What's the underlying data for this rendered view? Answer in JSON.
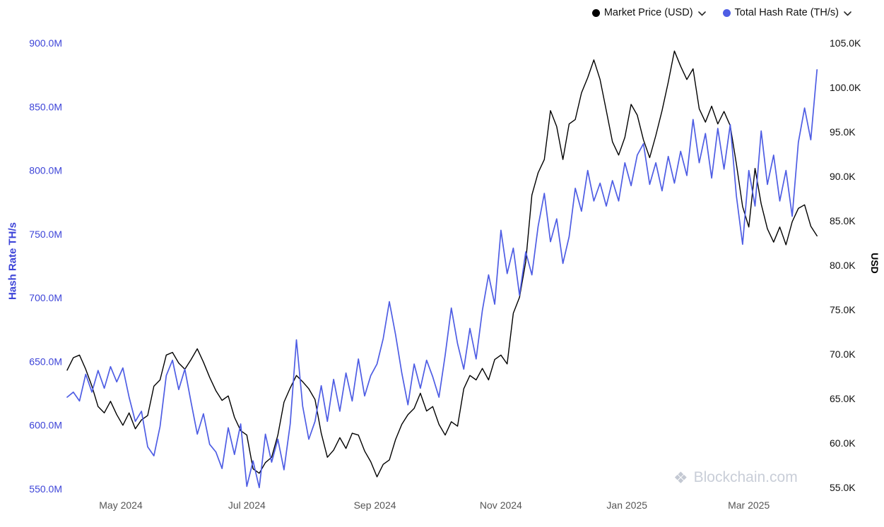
{
  "legend": {
    "market_price_label": "Market Price (USD)",
    "hash_rate_label": "Total Hash Rate (TH/s)"
  },
  "watermark": "Blockchain.com",
  "colors": {
    "axis_label_blue": "#3d44d8",
    "x_tick_gray": "#555555",
    "watermark_gray": "#c9ced8"
  },
  "chart_data": {
    "type": "line",
    "title": "",
    "grid": false,
    "legend_position": "top-right",
    "x_ticks": [
      {
        "label": "May 2024",
        "day": 26
      },
      {
        "label": "Jul 2024",
        "day": 87
      },
      {
        "label": "Sep 2024",
        "day": 149
      },
      {
        "label": "Nov 2024",
        "day": 210
      },
      {
        "label": "Jan 2025",
        "day": 271
      },
      {
        "label": "Mar 2025",
        "day": 330
      }
    ],
    "left_axis": {
      "label": "Hash Rate TH/s",
      "unit": "M TH/s",
      "min": 550,
      "max": 900,
      "ticks": [
        {
          "label": "550.0M",
          "value": 550
        },
        {
          "label": "600.0M",
          "value": 600
        },
        {
          "label": "650.0M",
          "value": 650
        },
        {
          "label": "700.0M",
          "value": 700
        },
        {
          "label": "750.0M",
          "value": 750
        },
        {
          "label": "800.0M",
          "value": 800
        },
        {
          "label": "850.0M",
          "value": 850
        },
        {
          "label": "900.0M",
          "value": 900
        }
      ]
    },
    "right_axis": {
      "label": "USD",
      "unit": "K USD",
      "min": 55,
      "max": 105,
      "ticks": [
        {
          "label": "55.0K",
          "value": 55
        },
        {
          "label": "60.0K",
          "value": 60
        },
        {
          "label": "65.0K",
          "value": 65
        },
        {
          "label": "70.0K",
          "value": 70
        },
        {
          "label": "75.0K",
          "value": 75
        },
        {
          "label": "80.0K",
          "value": 80
        },
        {
          "label": "85.0K",
          "value": 85
        },
        {
          "label": "90.0K",
          "value": 90
        },
        {
          "label": "95.0K",
          "value": 95
        },
        {
          "label": "100.0K",
          "value": 100
        },
        {
          "label": "105.0K",
          "value": 105
        }
      ]
    },
    "x_days": [
      0,
      3,
      6,
      9,
      12,
      15,
      18,
      21,
      24,
      27,
      30,
      33,
      36,
      39,
      42,
      45,
      48,
      51,
      54,
      57,
      60,
      63,
      66,
      69,
      72,
      75,
      78,
      81,
      84,
      87,
      90,
      93,
      96,
      99,
      102,
      105,
      108,
      111,
      114,
      117,
      120,
      123,
      126,
      129,
      132,
      135,
      138,
      141,
      144,
      147,
      150,
      153,
      156,
      159,
      162,
      165,
      168,
      171,
      174,
      177,
      180,
      183,
      186,
      189,
      192,
      195,
      198,
      201,
      204,
      207,
      210,
      213,
      216,
      219,
      222,
      225,
      228,
      231,
      234,
      237,
      240,
      243,
      246,
      249,
      252,
      255,
      258,
      261,
      264,
      267,
      270,
      273,
      276,
      279,
      282,
      285,
      288,
      291,
      294,
      297,
      300,
      303,
      306,
      309,
      312,
      315,
      318,
      321,
      324,
      327,
      330,
      333,
      336,
      339,
      342,
      345,
      348,
      351,
      354,
      357,
      360,
      363
    ],
    "series": [
      {
        "name": "Market Price (USD)",
        "axis": "right",
        "color": "#000000",
        "values": [
          68.2,
          69.6,
          69.9,
          68.3,
          66.4,
          64.1,
          63.4,
          64.7,
          63.2,
          62.0,
          63.4,
          61.6,
          62.6,
          63.1,
          66.4,
          67.1,
          69.9,
          70.2,
          69.0,
          68.3,
          69.4,
          70.6,
          69.1,
          67.4,
          65.9,
          64.8,
          65.3,
          62.9,
          61.4,
          60.9,
          57.1,
          56.6,
          57.8,
          58.4,
          60.9,
          64.6,
          66.2,
          67.6,
          66.9,
          66.1,
          64.9,
          61.1,
          58.4,
          59.2,
          60.6,
          59.4,
          61.1,
          60.9,
          59.1,
          57.9,
          56.2,
          57.6,
          58.1,
          60.4,
          62.1,
          63.2,
          63.9,
          65.6,
          63.6,
          64.1,
          62.1,
          60.9,
          62.4,
          61.9,
          66.1,
          67.6,
          67.1,
          68.4,
          67.1,
          69.4,
          69.9,
          68.9,
          74.6,
          76.4,
          80.4,
          87.9,
          90.4,
          91.9,
          97.4,
          95.6,
          91.9,
          95.9,
          96.4,
          99.4,
          101.1,
          103.1,
          100.9,
          97.4,
          93.9,
          92.4,
          94.4,
          98.1,
          96.9,
          94.1,
          92.1,
          94.6,
          97.4,
          100.6,
          104.1,
          102.4,
          100.9,
          102.1,
          97.6,
          96.1,
          97.9,
          95.9,
          97.3,
          95.7,
          91.4,
          86.6,
          84.3,
          90.9,
          86.9,
          84.1,
          82.6,
          84.3,
          82.3,
          84.9,
          86.4,
          86.8,
          84.4,
          83.3
        ]
      },
      {
        "name": "Total Hash Rate (TH/s)",
        "axis": "left",
        "color": "#4e5de4",
        "values": [
          622,
          626,
          619,
          640,
          626,
          643,
          629,
          646,
          634,
          645,
          622,
          603,
          611,
          583,
          576,
          599,
          639,
          651,
          628,
          644,
          618,
          593,
          609,
          585,
          579,
          566,
          598,
          577,
          601,
          552,
          572,
          551,
          593,
          571,
          589,
          565,
          601,
          667,
          615,
          589,
          603,
          631,
          603,
          636,
          611,
          641,
          619,
          652,
          623,
          639,
          648,
          668,
          697,
          671,
          641,
          616,
          648,
          629,
          651,
          638,
          622,
          655,
          692,
          664,
          644,
          676,
          652,
          690,
          718,
          695,
          753,
          719,
          739,
          702,
          736,
          718,
          756,
          782,
          744,
          762,
          727,
          748,
          786,
          768,
          800,
          776,
          790,
          772,
          792,
          776,
          806,
          788,
          812,
          821,
          789,
          806,
          784,
          811,
          790,
          815,
          796,
          840,
          806,
          829,
          794,
          833,
          801,
          836,
          780,
          742,
          800,
          772,
          831,
          789,
          812,
          776,
          800,
          764,
          822,
          849,
          824,
          879
        ]
      }
    ]
  }
}
